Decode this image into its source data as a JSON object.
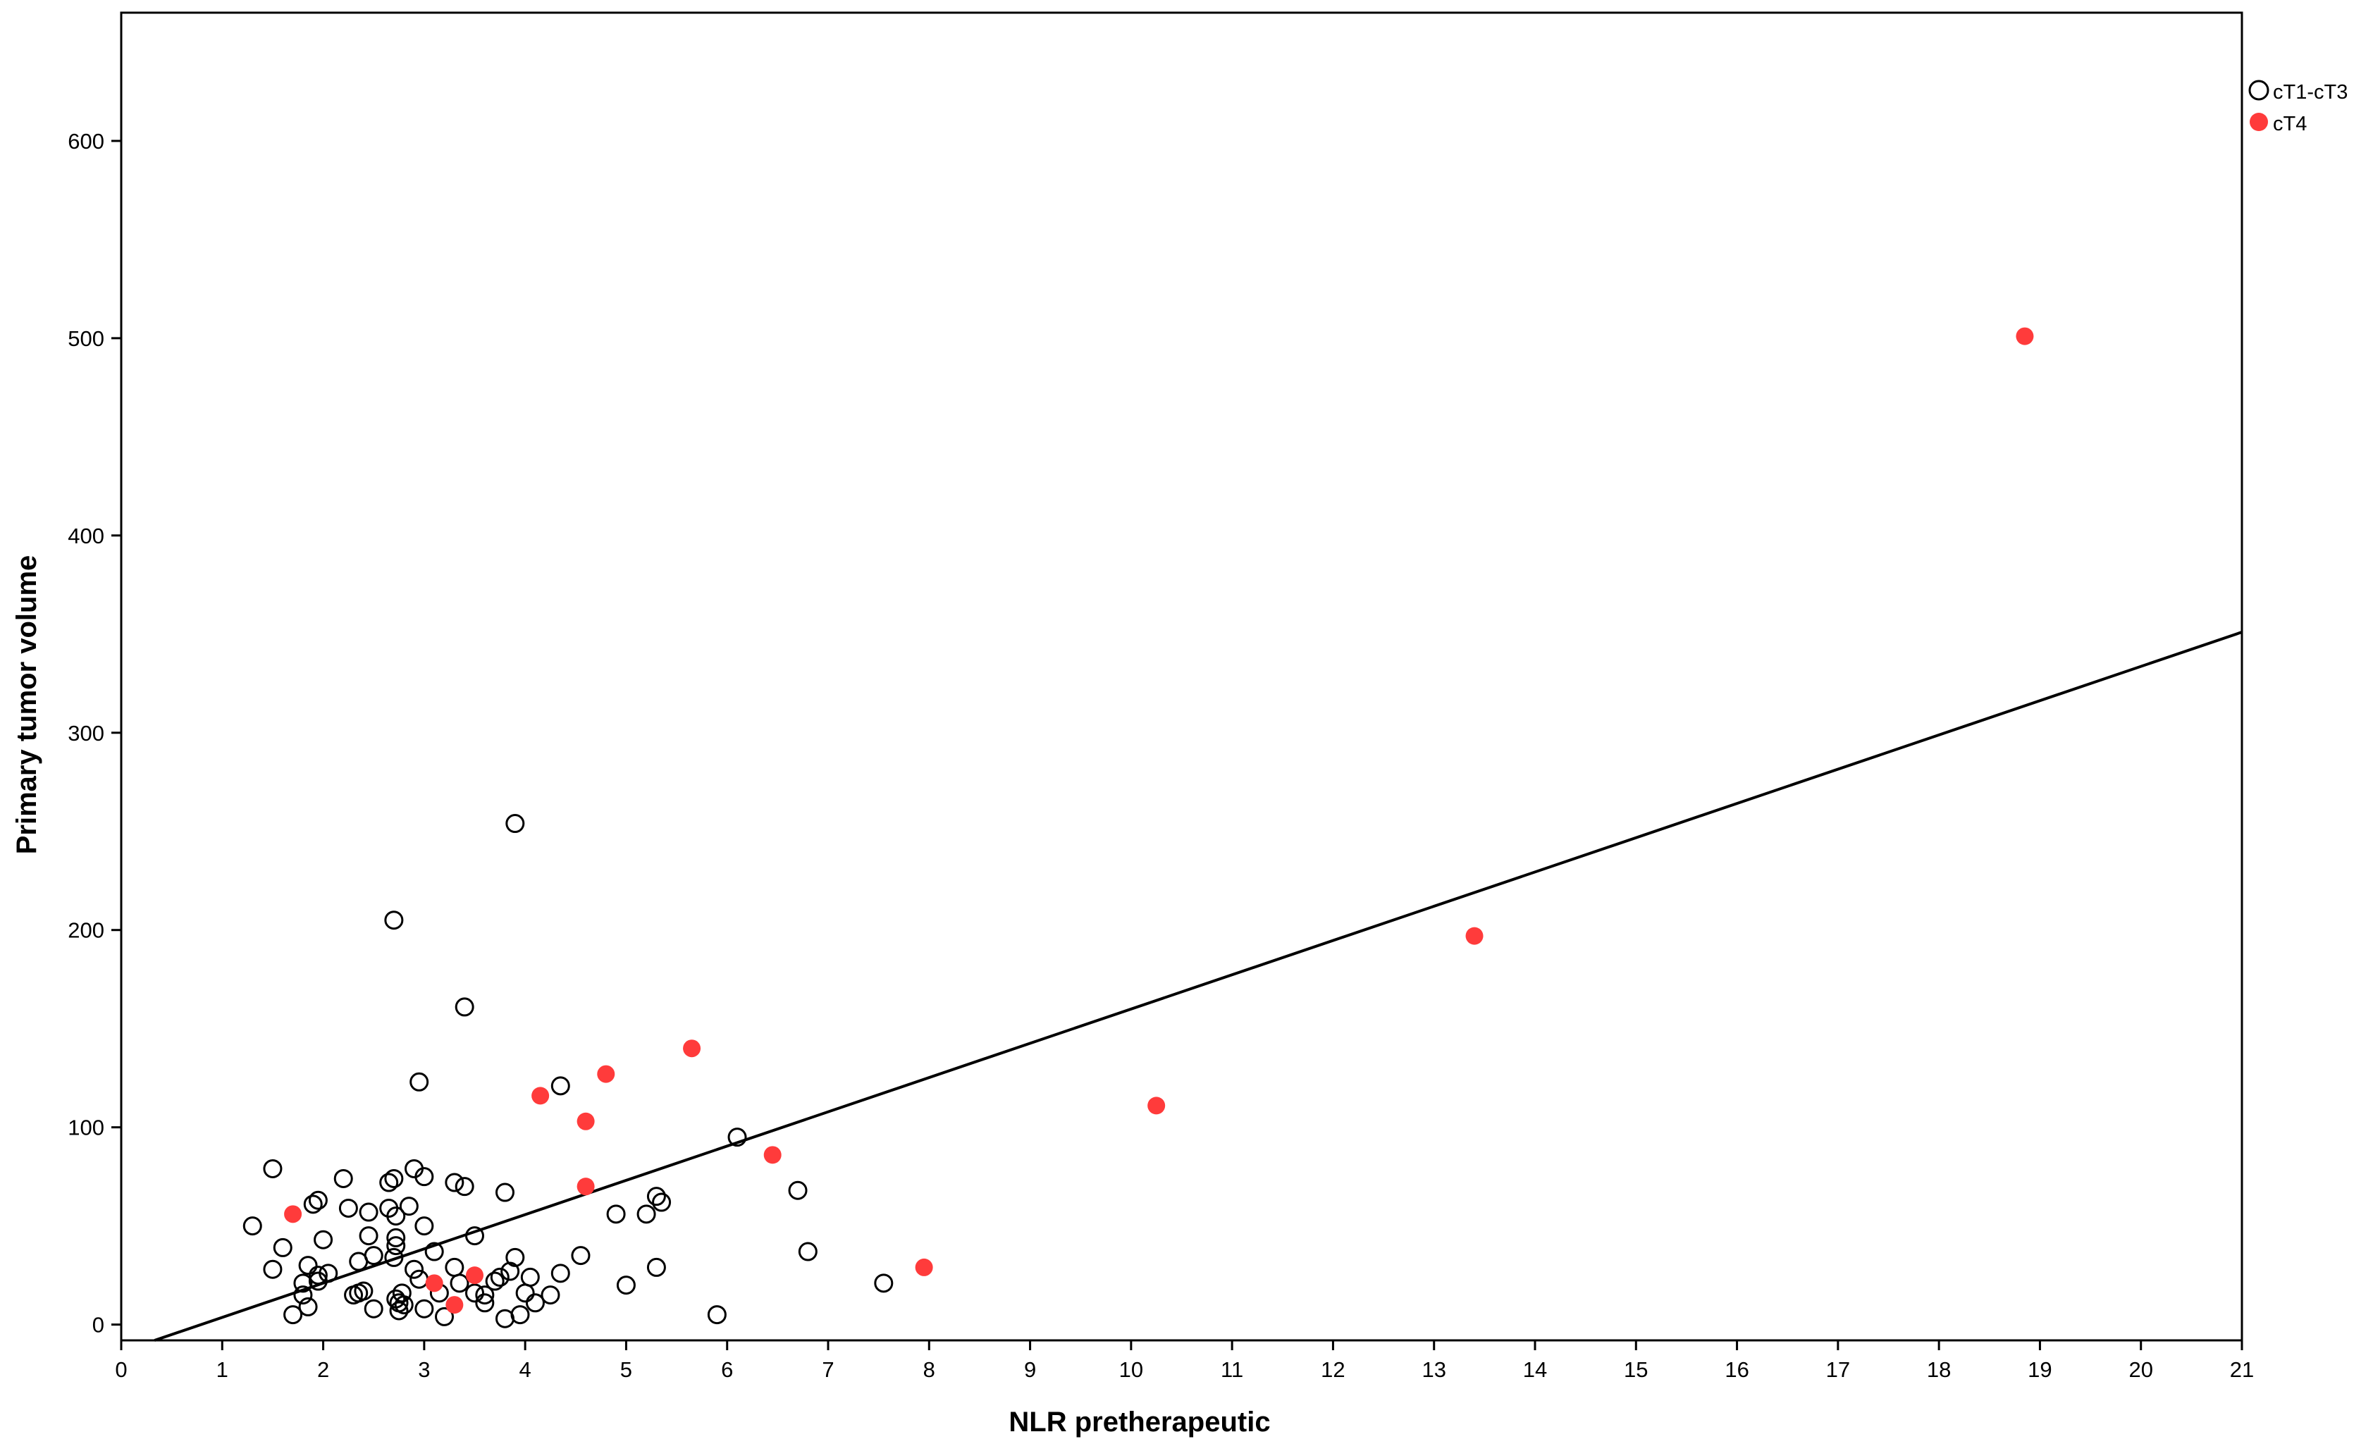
{
  "chart_data": {
    "type": "scatter",
    "xlabel": "NLR pretherapeutic",
    "ylabel": "Primary tumor volume",
    "xlim": [
      0,
      21
    ],
    "ylim": [
      -8,
      665
    ],
    "xticks": [
      0,
      1,
      2,
      3,
      4,
      5,
      6,
      7,
      8,
      9,
      10,
      11,
      12,
      13,
      14,
      15,
      16,
      17,
      18,
      19,
      20,
      21
    ],
    "yticks": [
      0,
      100,
      200,
      300,
      400,
      500,
      600
    ],
    "grid": false,
    "legend_position": "right-top",
    "series": [
      {
        "name": "cT1-cT3",
        "marker": "open-circle",
        "color": "#000000",
        "points": [
          [
            1.3,
            50
          ],
          [
            1.5,
            79
          ],
          [
            1.5,
            28
          ],
          [
            1.6,
            39
          ],
          [
            1.7,
            5
          ],
          [
            1.8,
            21
          ],
          [
            1.8,
            15
          ],
          [
            1.85,
            30
          ],
          [
            1.85,
            9
          ],
          [
            1.9,
            61
          ],
          [
            1.95,
            63
          ],
          [
            1.95,
            25
          ],
          [
            1.95,
            22
          ],
          [
            2.0,
            43
          ],
          [
            2.05,
            26
          ],
          [
            2.2,
            74
          ],
          [
            2.25,
            59
          ],
          [
            2.3,
            15
          ],
          [
            2.35,
            32
          ],
          [
            2.35,
            16
          ],
          [
            2.4,
            17
          ],
          [
            2.45,
            57
          ],
          [
            2.45,
            45
          ],
          [
            2.5,
            35
          ],
          [
            2.5,
            8
          ],
          [
            2.65,
            59
          ],
          [
            2.65,
            72
          ],
          [
            2.7,
            34
          ],
          [
            2.7,
            74
          ],
          [
            2.7,
            205
          ],
          [
            2.72,
            55
          ],
          [
            2.72,
            44
          ],
          [
            2.72,
            40
          ],
          [
            2.72,
            13
          ],
          [
            2.75,
            11
          ],
          [
            2.75,
            7
          ],
          [
            2.78,
            16
          ],
          [
            2.8,
            10
          ],
          [
            2.85,
            60
          ],
          [
            2.9,
            79
          ],
          [
            2.9,
            28
          ],
          [
            2.95,
            123
          ],
          [
            2.95,
            23
          ],
          [
            3.0,
            75
          ],
          [
            3.0,
            50
          ],
          [
            3.0,
            8
          ],
          [
            3.1,
            37
          ],
          [
            3.15,
            16
          ],
          [
            3.2,
            4
          ],
          [
            3.3,
            72
          ],
          [
            3.3,
            29
          ],
          [
            3.35,
            21
          ],
          [
            3.4,
            161
          ],
          [
            3.4,
            70
          ],
          [
            3.5,
            16
          ],
          [
            3.5,
            45
          ],
          [
            3.6,
            15
          ],
          [
            3.6,
            11
          ],
          [
            3.7,
            22
          ],
          [
            3.75,
            24
          ],
          [
            3.8,
            67
          ],
          [
            3.85,
            27
          ],
          [
            3.9,
            254
          ],
          [
            3.9,
            34
          ],
          [
            3.95,
            5
          ],
          [
            4.0,
            16
          ],
          [
            4.05,
            24
          ],
          [
            4.1,
            11
          ],
          [
            4.25,
            15
          ],
          [
            4.35,
            121
          ],
          [
            4.35,
            26
          ],
          [
            4.55,
            35
          ],
          [
            4.9,
            56
          ],
          [
            5.0,
            20
          ],
          [
            5.2,
            56
          ],
          [
            5.3,
            29
          ],
          [
            5.3,
            65
          ],
          [
            5.35,
            62
          ],
          [
            5.9,
            5
          ],
          [
            6.1,
            95
          ],
          [
            6.7,
            68
          ],
          [
            6.8,
            37
          ],
          [
            7.55,
            21
          ],
          [
            3.8,
            3
          ]
        ]
      },
      {
        "name": "cT4",
        "marker": "filled-circle",
        "color": "#ff3b3b",
        "points": [
          [
            1.7,
            56
          ],
          [
            3.1,
            21
          ],
          [
            3.3,
            10
          ],
          [
            3.5,
            25
          ],
          [
            4.15,
            116
          ],
          [
            4.6,
            103
          ],
          [
            4.6,
            70
          ],
          [
            4.8,
            127
          ],
          [
            5.65,
            140
          ],
          [
            6.45,
            86
          ],
          [
            7.95,
            29
          ],
          [
            10.25,
            111
          ],
          [
            13.4,
            197
          ],
          [
            18.85,
            501
          ]
        ]
      }
    ],
    "fit_line": {
      "x": [
        0.33,
        21.0
      ],
      "y": [
        -8,
        351
      ]
    }
  }
}
